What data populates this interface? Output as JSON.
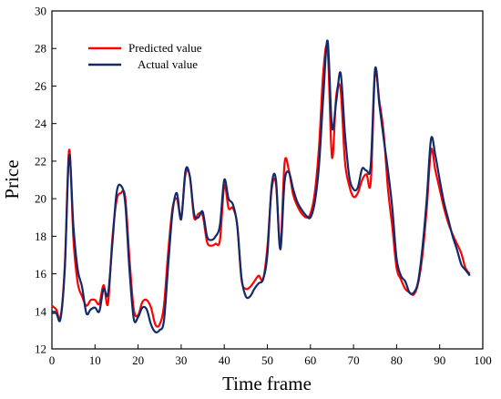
{
  "chart_data": {
    "type": "line",
    "xlabel": "Time frame",
    "ylabel": "Price",
    "xlim": [
      0,
      100
    ],
    "ylim": [
      12,
      30
    ],
    "xticks": [
      0,
      10,
      20,
      30,
      40,
      50,
      60,
      70,
      80,
      90,
      100
    ],
    "yticks": [
      12,
      14,
      16,
      18,
      20,
      22,
      24,
      26,
      28,
      30
    ],
    "grid": false,
    "legend_position": "top-left",
    "series": [
      {
        "name": "Predicted value",
        "color": "#ff0000",
        "x": [
          0,
          1,
          2,
          3,
          4,
          5,
          6,
          7,
          8,
          9,
          10,
          11,
          12,
          13,
          14,
          15,
          16,
          17,
          18,
          19,
          20,
          21,
          22,
          23,
          24,
          25,
          26,
          27,
          28,
          29,
          30,
          31,
          32,
          33,
          34,
          35,
          36,
          37,
          38,
          39,
          40,
          41,
          42,
          43,
          44,
          45,
          46,
          47,
          48,
          49,
          50,
          51,
          52,
          53,
          54,
          55,
          56,
          57,
          58,
          59,
          60,
          61,
          62,
          63,
          64,
          65,
          66,
          67,
          68,
          69,
          70,
          71,
          72,
          73,
          74,
          75,
          76,
          77,
          78,
          79,
          80,
          81,
          82,
          83,
          84,
          85,
          86,
          87,
          88,
          89,
          90,
          91,
          92,
          93,
          94,
          95,
          96,
          97
        ],
        "y": [
          14.3,
          14.1,
          13.7,
          16.5,
          22.6,
          17.8,
          15.5,
          14.8,
          14.3,
          14.6,
          14.6,
          14.4,
          15.4,
          14.4,
          17.8,
          19.9,
          20.3,
          20.1,
          16.8,
          14.1,
          13.8,
          14.5,
          14.6,
          14.2,
          13.3,
          13.3,
          14.3,
          17.2,
          19.5,
          20.0,
          19.0,
          21.3,
          21.2,
          19.0,
          19.2,
          19.1,
          17.7,
          17.5,
          17.6,
          17.8,
          20.7,
          19.5,
          19.5,
          18.6,
          15.7,
          15.2,
          15.3,
          15.6,
          15.9,
          15.7,
          17.4,
          20.5,
          20.8,
          17.4,
          21.9,
          21.5,
          20.2,
          19.6,
          19.2,
          19.0,
          19.2,
          20.3,
          22.8,
          26.8,
          27.9,
          22.2,
          25.5,
          25.8,
          22.0,
          20.7,
          20.1,
          20.3,
          21.0,
          21.3,
          20.9,
          26.7,
          25.2,
          23.5,
          20.5,
          18.5,
          16.3,
          15.7,
          15.2,
          15.0,
          14.9,
          15.5,
          17.0,
          19.5,
          22.6,
          21.5,
          20.5,
          19.5,
          18.7,
          18.1,
          17.6,
          17.1,
          16.3,
          16.0
        ]
      },
      {
        "name": "Actual value",
        "color": "#102a6b",
        "x": [
          0,
          1,
          2,
          3,
          4,
          5,
          6,
          7,
          8,
          9,
          10,
          11,
          12,
          13,
          14,
          15,
          16,
          17,
          18,
          19,
          20,
          21,
          22,
          23,
          24,
          25,
          26,
          27,
          28,
          29,
          30,
          31,
          32,
          33,
          34,
          35,
          36,
          37,
          38,
          39,
          40,
          41,
          42,
          43,
          44,
          45,
          46,
          47,
          48,
          49,
          50,
          51,
          52,
          53,
          54,
          55,
          56,
          57,
          58,
          59,
          60,
          61,
          62,
          63,
          64,
          65,
          66,
          67,
          68,
          69,
          70,
          71,
          72,
          73,
          74,
          75,
          76,
          77,
          78,
          79,
          80,
          81,
          82,
          83,
          84,
          85,
          86,
          87,
          88,
          89,
          90,
          91,
          92,
          93,
          94,
          95,
          96,
          97
        ],
        "y": [
          13.9,
          13.9,
          13.6,
          16.3,
          22.3,
          18.5,
          16.2,
          15.3,
          13.9,
          14.1,
          14.2,
          14.0,
          15.2,
          14.9,
          17.5,
          20.3,
          20.7,
          19.8,
          16.2,
          13.6,
          13.7,
          14.2,
          14.1,
          13.3,
          12.9,
          13.0,
          13.5,
          16.5,
          19.3,
          20.3,
          18.9,
          21.5,
          21.2,
          19.2,
          19.0,
          19.3,
          18.0,
          17.8,
          18.0,
          18.6,
          21.0,
          20.0,
          19.7,
          18.6,
          15.8,
          14.8,
          14.8,
          15.2,
          15.5,
          15.7,
          17.0,
          20.7,
          21.0,
          17.3,
          20.9,
          21.4,
          20.5,
          19.8,
          19.4,
          19.1,
          19.0,
          19.8,
          21.8,
          25.5,
          28.4,
          23.8,
          25.2,
          26.7,
          23.5,
          21.2,
          20.5,
          20.6,
          21.6,
          21.5,
          21.8,
          26.9,
          25.0,
          23.2,
          21.5,
          19.5,
          16.8,
          15.9,
          15.6,
          15.0,
          15.0,
          15.6,
          17.4,
          20.0,
          23.2,
          22.3,
          21.0,
          19.8,
          18.9,
          18.0,
          17.3,
          16.5,
          16.2,
          15.9
        ]
      }
    ]
  }
}
